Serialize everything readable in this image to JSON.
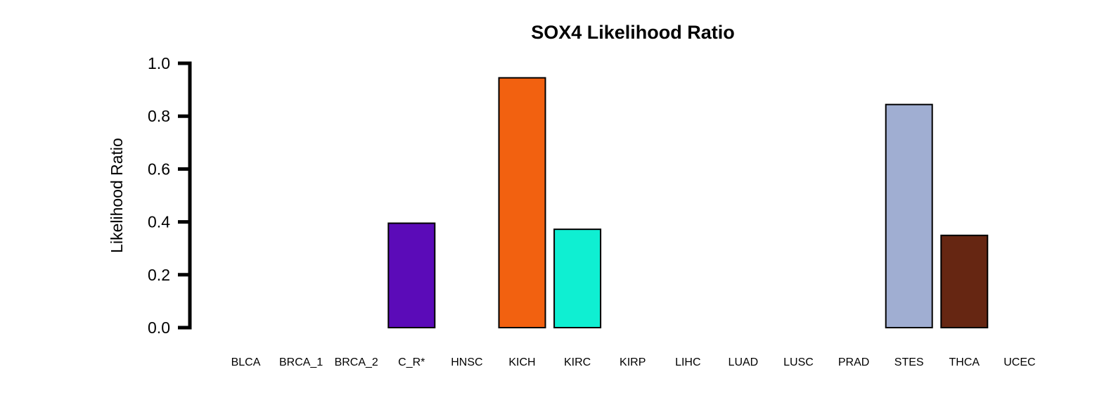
{
  "chart_data": {
    "type": "bar",
    "title": "SOX4 Likelihood Ratio",
    "xlabel": "",
    "ylabel": "Likelihood Ratio",
    "ylim": [
      0,
      1
    ],
    "yticks": [
      "0.0",
      "0.2",
      "0.4",
      "0.6",
      "0.8",
      "1.0"
    ],
    "categories": [
      "BLCA",
      "BRCA_1",
      "BRCA_2",
      "C_R*",
      "HNSC",
      "KICH",
      "KIRC",
      "KIRP",
      "LIHC",
      "LUAD",
      "LUSC",
      "PRAD",
      "STES",
      "THCA",
      "UCEC"
    ],
    "values": [
      0,
      0,
      0,
      0.395,
      0,
      0.945,
      0.372,
      0,
      0,
      0,
      0,
      0,
      0.844,
      0.349,
      0
    ],
    "colors": [
      "#ffffff",
      "#ffffff",
      "#ffffff",
      "#5b0bb8",
      "#ffffff",
      "#f26110",
      "#0fefd2",
      "#ffffff",
      "#ffffff",
      "#ffffff",
      "#ffffff",
      "#ffffff",
      "#a0aed2",
      "#662612",
      "#ffffff"
    ],
    "grid": false,
    "legend": "none"
  }
}
